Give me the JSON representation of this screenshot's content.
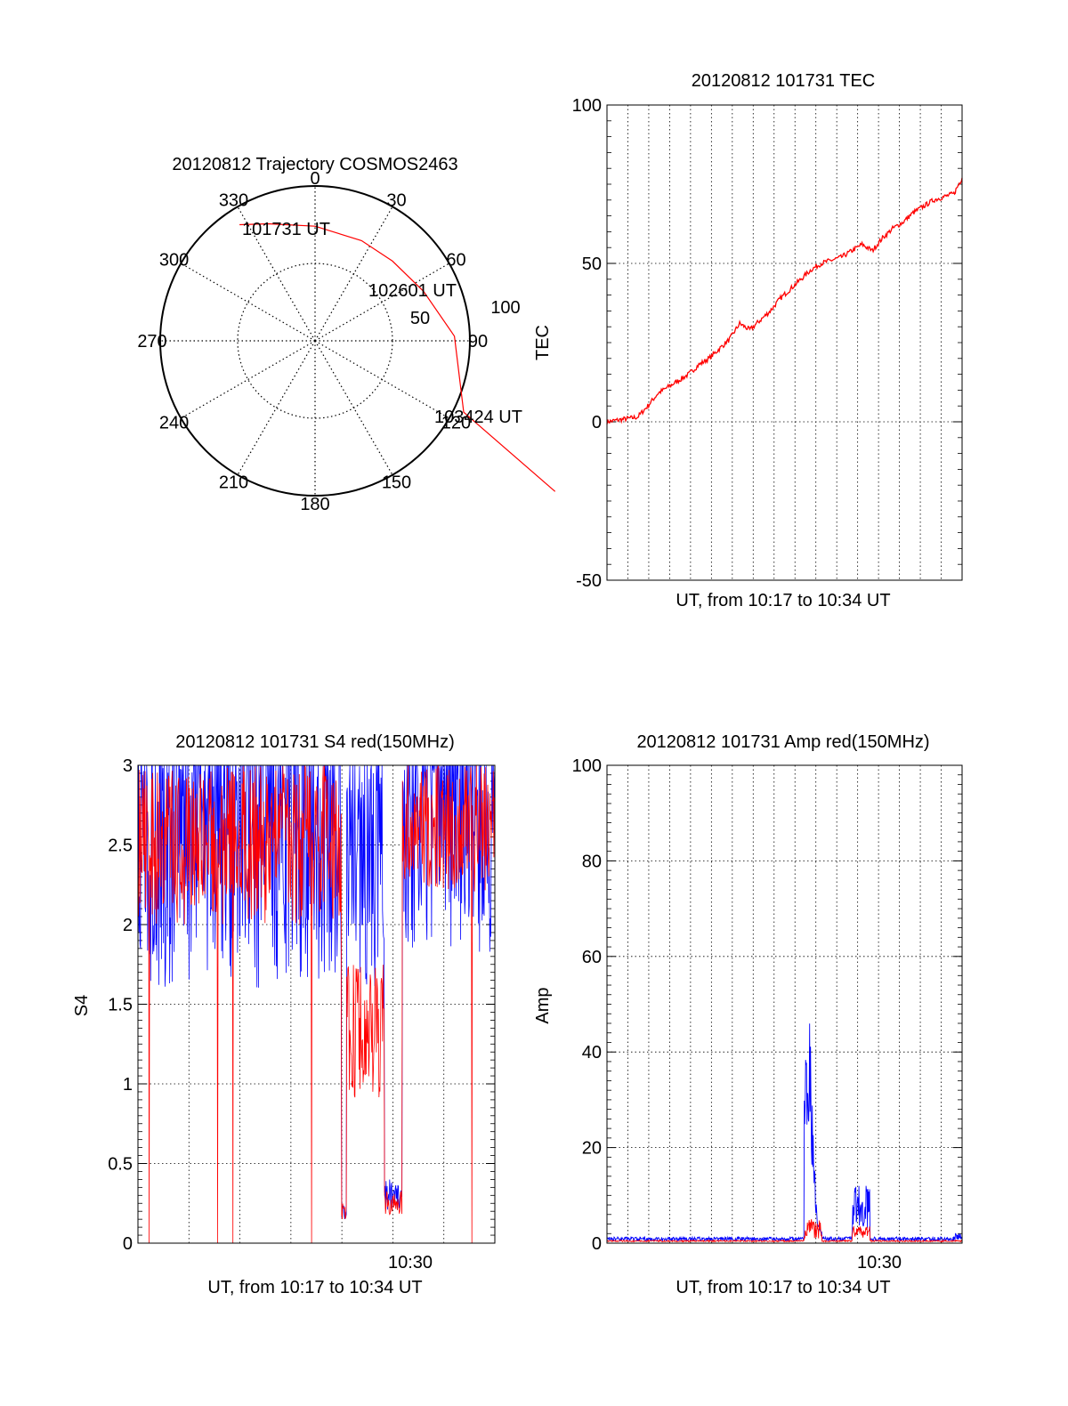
{
  "chart_data": [
    {
      "id": "trajectory",
      "type": "polar",
      "title": "20120812 Trajectory COSMOS2463",
      "azimuth_ticks": [
        "0",
        "30",
        "60",
        "90",
        "120",
        "150",
        "180",
        "210",
        "240",
        "270",
        "300",
        "330"
      ],
      "radial_ticks": [
        "50",
        "100"
      ],
      "rlim": [
        0,
        100
      ],
      "grid": true,
      "series": [
        {
          "color": "#ff0000",
          "points": [
            [
              -48.8,
              75.0
            ],
            [
              -30,
              75.6
            ],
            [
              0,
              74.0
            ],
            [
              30,
              64.7
            ],
            [
              50,
              51.5
            ],
            [
              70,
              32.0
            ],
            [
              90,
              3.0
            ],
            [
              96,
              -46.1
            ],
            [
              155,
              -97.3
            ]
          ]
        }
      ],
      "annotations": [
        {
          "text": "101731 UT",
          "at": [
            -48.8,
            75.0
          ]
        },
        {
          "text": "102601 UT",
          "at": [
            50,
            51.5
          ]
        },
        {
          "text": "103424 UT",
          "at": [
            155,
            -97.3
          ]
        }
      ]
    },
    {
      "id": "tec",
      "type": "line",
      "title": "20120812 101731 TEC",
      "xlabel": "UT, from 10:17 to 10:34 UT",
      "ylabel": "TEC",
      "ylim": [
        -50,
        100
      ],
      "yticks": [
        "-50",
        "0",
        "50",
        "100"
      ],
      "xlim": [
        0,
        17.4
      ],
      "grid": true,
      "series": [
        {
          "color": "#ff0000",
          "x": [
            0,
            0.5,
            1.0,
            1.5,
            2.0,
            2.5,
            3.0,
            3.5,
            4.0,
            4.5,
            5.0,
            5.5,
            6.0,
            6.5,
            7.0,
            7.5,
            8.0,
            8.5,
            9.0,
            9.5,
            10.0,
            10.5,
            11.0,
            11.5,
            12.0,
            12.5,
            13.0,
            13.5,
            14.0,
            14.5,
            15.0,
            15.5,
            16.0,
            16.5,
            17.0,
            17.4
          ],
          "y": [
            0,
            0.5,
            1,
            1.5,
            5,
            9,
            11,
            13,
            15,
            18,
            20,
            23,
            26,
            31,
            29,
            32,
            35,
            39,
            42,
            45,
            48,
            50,
            51,
            52,
            54,
            56,
            54,
            58,
            61,
            63,
            66,
            68,
            70,
            71,
            72,
            77
          ]
        }
      ]
    },
    {
      "id": "s4",
      "type": "line",
      "title": "20120812 101731 S4 red(150MHz)",
      "xlabel": "UT, from 10:17 to 10:34 UT",
      "ylabel": "S4",
      "ylim": [
        0,
        3
      ],
      "yticks": [
        "0",
        "0.5",
        "1",
        "1.5",
        "2",
        "2.5",
        "3"
      ],
      "xticks": [
        "10:30"
      ],
      "grid": true,
      "series": [
        {
          "color": "#ff0000"
        },
        {
          "color": "#0000ff"
        }
      ]
    },
    {
      "id": "amp",
      "type": "line",
      "title": "20120812 101731 Amp red(150MHz)",
      "xlabel": "UT, from 10:17 to 10:34 UT",
      "ylabel": "Amp",
      "ylim": [
        0,
        100
      ],
      "yticks": [
        "0",
        "20",
        "40",
        "60",
        "80",
        "100"
      ],
      "xticks": [
        "10:30"
      ],
      "grid": true,
      "series": [
        {
          "color": "#0000ff"
        },
        {
          "color": "#ff0000"
        }
      ]
    }
  ]
}
